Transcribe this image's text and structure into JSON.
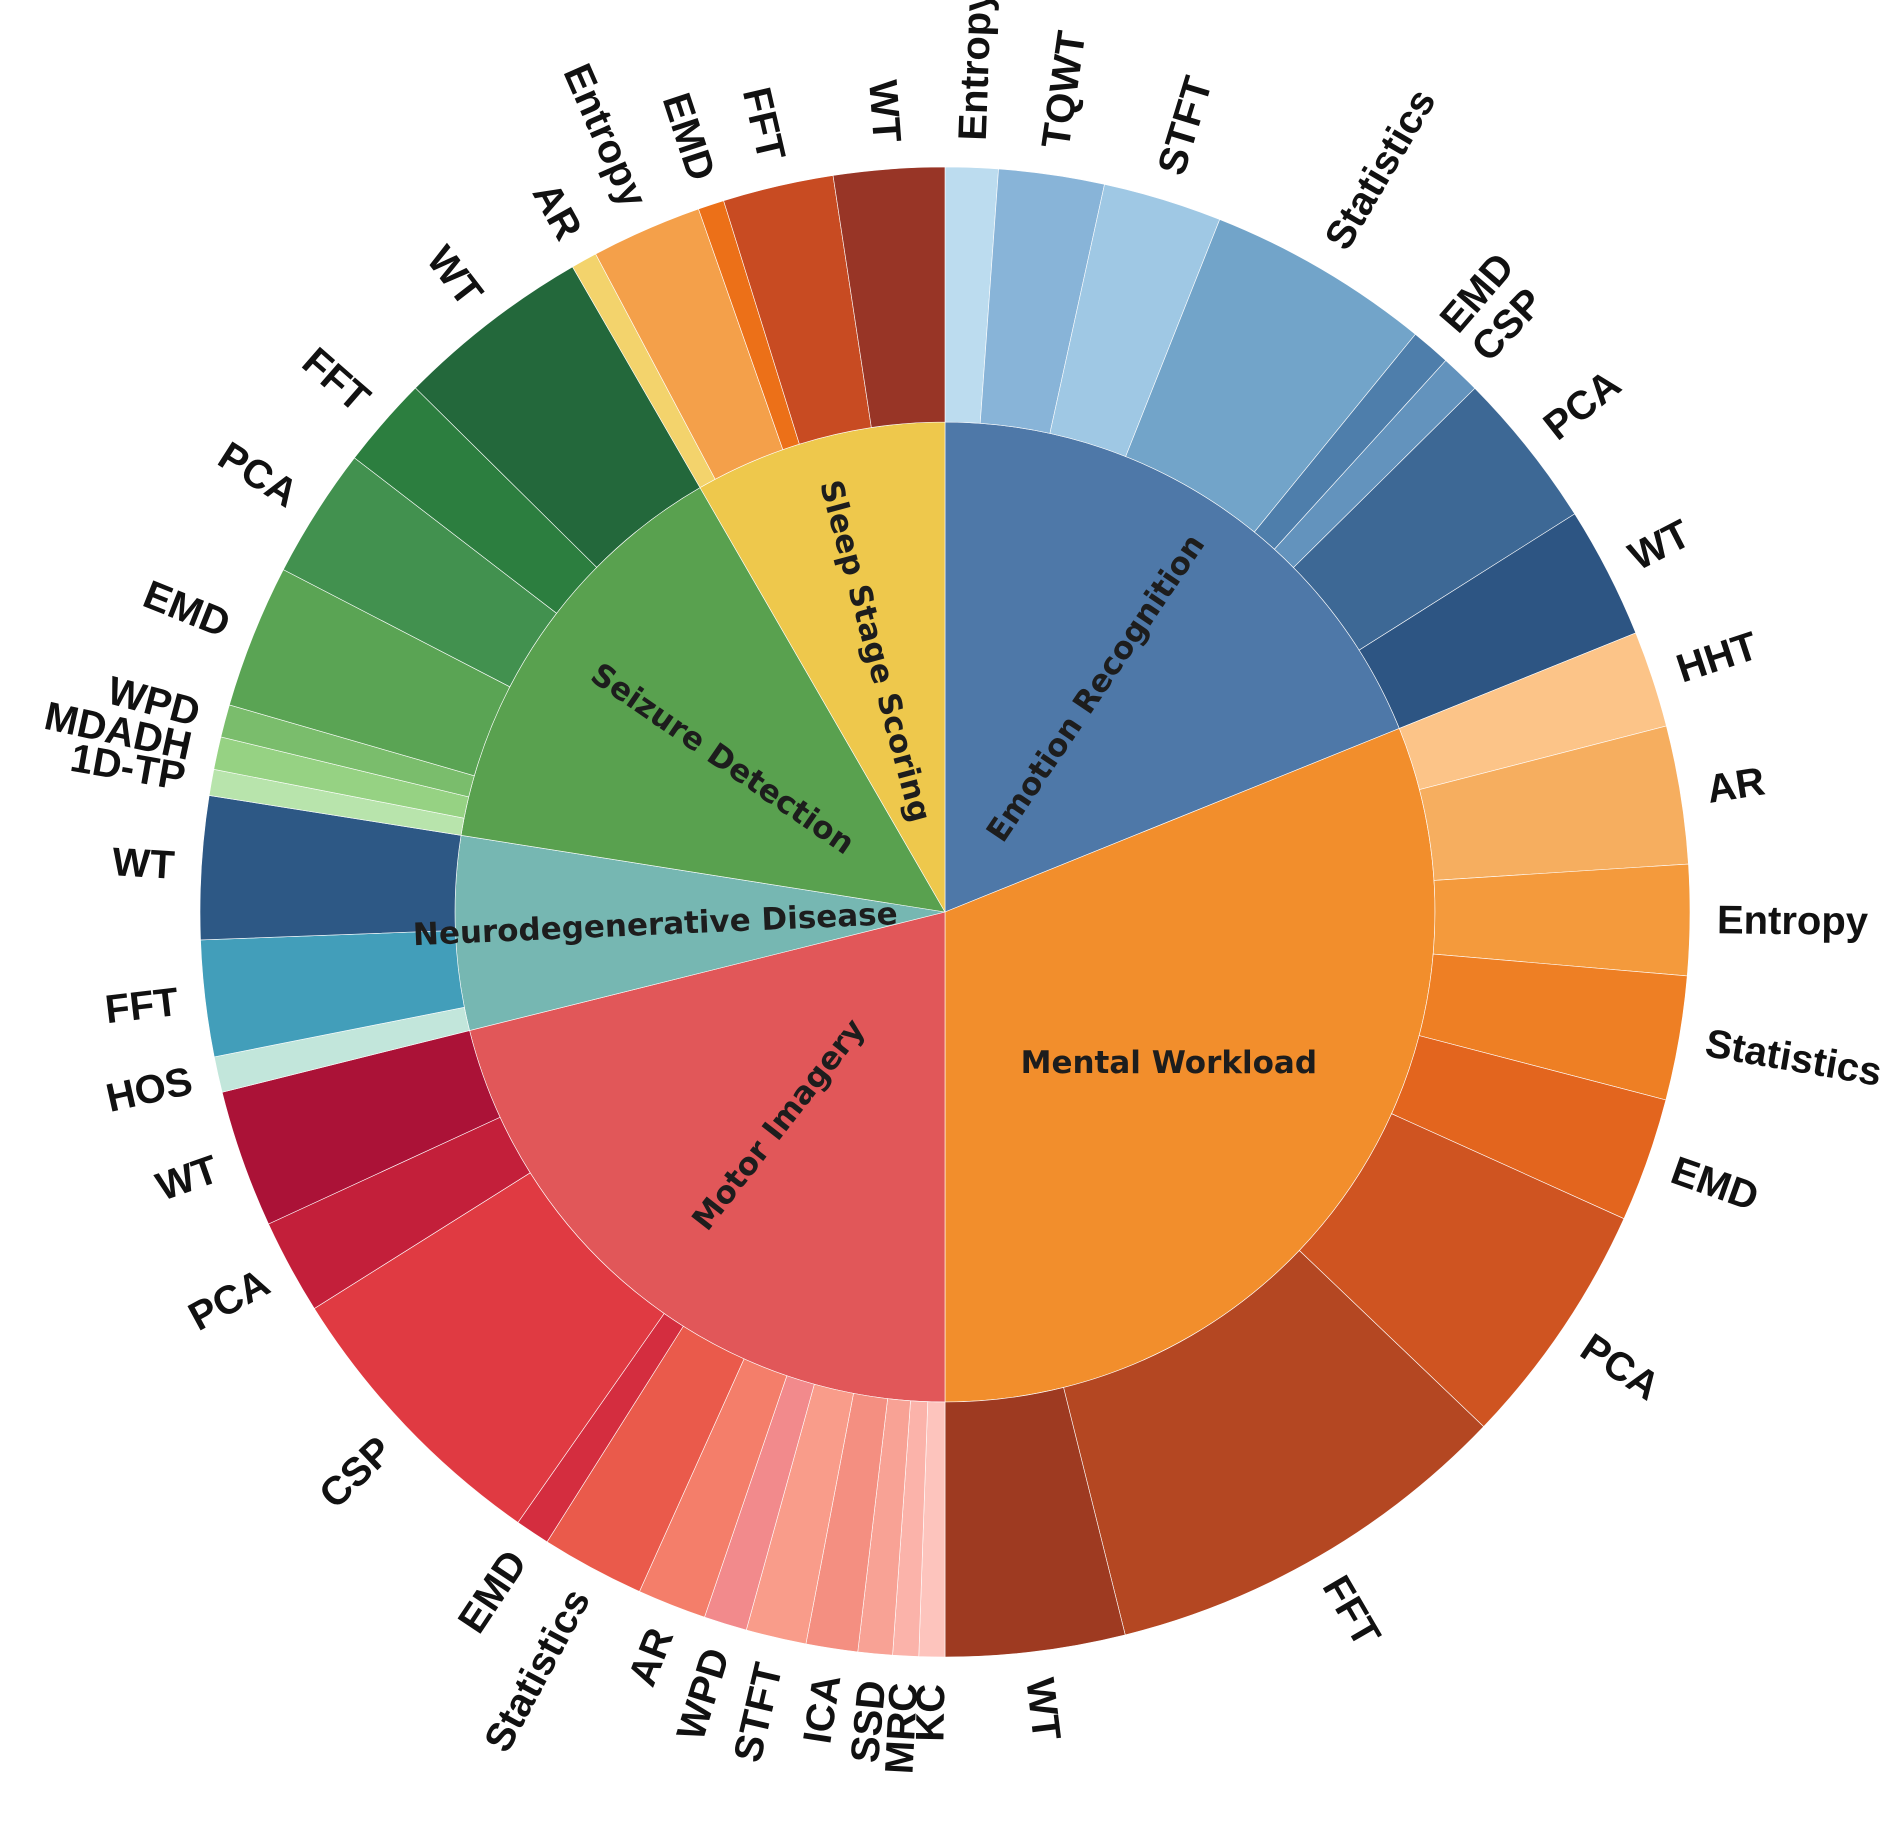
{
  "chart_data": {
    "type": "sunburst",
    "title": "",
    "categories": [
      {
        "name": "Emotion Recognition",
        "color": "#4e78a8",
        "children": [
          {
            "label": "Entropy",
            "value": 2.0,
            "color": "#bcdcef"
          },
          {
            "label": "TQWT",
            "value": 4.0,
            "color": "#88b4d8"
          },
          {
            "label": "STFT",
            "value": 4.5,
            "color": "#9fc8e4"
          },
          {
            "label": "Statistics",
            "value": 8.5,
            "color": "#72a4c9"
          },
          {
            "label": "EMD",
            "value": 1.5,
            "color": "#4e7eab"
          },
          {
            "label": "CSP",
            "value": 1.5,
            "color": "#6393bd"
          },
          {
            "label": "PCA",
            "value": 6.0,
            "color": "#3d6895"
          },
          {
            "label": "WT",
            "value": 5.0,
            "color": "#2d5583"
          }
        ]
      },
      {
        "name": "Mental Workload",
        "color": "#f28e2c",
        "children": [
          {
            "label": "HHT",
            "value": 3.5,
            "color": "#fcc488"
          },
          {
            "label": "AR",
            "value": 5.0,
            "color": "#f6ae5f"
          },
          {
            "label": "Entropy",
            "value": 4.0,
            "color": "#f49a3c"
          },
          {
            "label": "Statistics",
            "value": 4.5,
            "color": "#ee7f24"
          },
          {
            "label": "EMD",
            "value": 4.5,
            "color": "#e3651e"
          },
          {
            "label": "PCA",
            "value": 9.0,
            "color": "#cf5421"
          },
          {
            "label": "FFT",
            "value": 15.0,
            "color": "#b44722"
          },
          {
            "label": "WT",
            "value": 6.5,
            "color": "#9e3a21"
          }
        ]
      },
      {
        "name": "Motor Imagery",
        "color": "#e15759",
        "children": [
          {
            "label": "KC",
            "value": 1.5,
            "color": "#fdc4bd"
          },
          {
            "label": "MRC",
            "value": 1.5,
            "color": "#fbb3aa"
          },
          {
            "label": "SSD",
            "value": 2.0,
            "color": "#f8a295"
          },
          {
            "label": "ICA",
            "value": 3.0,
            "color": "#f48f81"
          },
          {
            "label": "STFT",
            "value": 3.5,
            "color": "#f99c8a"
          },
          {
            "label": "WPD",
            "value": 2.5,
            "color": "#f28a8c"
          },
          {
            "label": "AR",
            "value": 4.0,
            "color": "#f47e6a"
          },
          {
            "label": "Statistics",
            "value": 6.0,
            "color": "#ea5a4b"
          },
          {
            "label": "EMD",
            "value": 2.0,
            "color": "#d42d3f"
          },
          {
            "label": "CSP",
            "value": 17.0,
            "color": "#e03a42"
          },
          {
            "label": "PCA",
            "value": 5.5,
            "color": "#c31f3a"
          },
          {
            "label": "WT",
            "value": 8.0,
            "color": "#ab1237"
          }
        ]
      },
      {
        "name": "Neurodegenerative Disease",
        "color": "#76b7b2",
        "children": [
          {
            "label": "HOS",
            "value": 2.0,
            "color": "#c2e6db"
          },
          {
            "label": "FFT",
            "value": 6.5,
            "color": "#429eba"
          },
          {
            "label": "WT",
            "value": 8.0,
            "color": "#2d5885"
          }
        ]
      },
      {
        "name": "Seizure Detection",
        "color": "#59a14f",
        "children": [
          {
            "label": "1D-TP",
            "value": 2.0,
            "color": "#b8e4ac"
          },
          {
            "label": "MDADH",
            "value": 2.5,
            "color": "#96d283"
          },
          {
            "label": "WPD",
            "value": 2.5,
            "color": "#7abd6c"
          },
          {
            "label": "EMD",
            "value": 11.0,
            "color": "#5aa454"
          },
          {
            "label": "PCA",
            "value": 10.0,
            "color": "#42914f"
          },
          {
            "label": "FFT",
            "value": 7.0,
            "color": "#2c7e3f"
          },
          {
            "label": "WT",
            "value": 15.0,
            "color": "#23683b"
          }
        ]
      },
      {
        "name": "Sleep Stage Scoring",
        "color": "#eec84c",
        "children": [
          {
            "label": "AR",
            "value": 2.0,
            "color": "#f3d36c"
          },
          {
            "label": "Entropy",
            "value": 8.5,
            "color": "#f4a04a"
          },
          {
            "label": "EMD",
            "value": 2.0,
            "color": "#ec7018"
          },
          {
            "label": "FFT",
            "value": 8.5,
            "color": "#c84b22"
          },
          {
            "label": "WT",
            "value": 8.5,
            "color": "#983526"
          }
        ]
      }
    ]
  }
}
